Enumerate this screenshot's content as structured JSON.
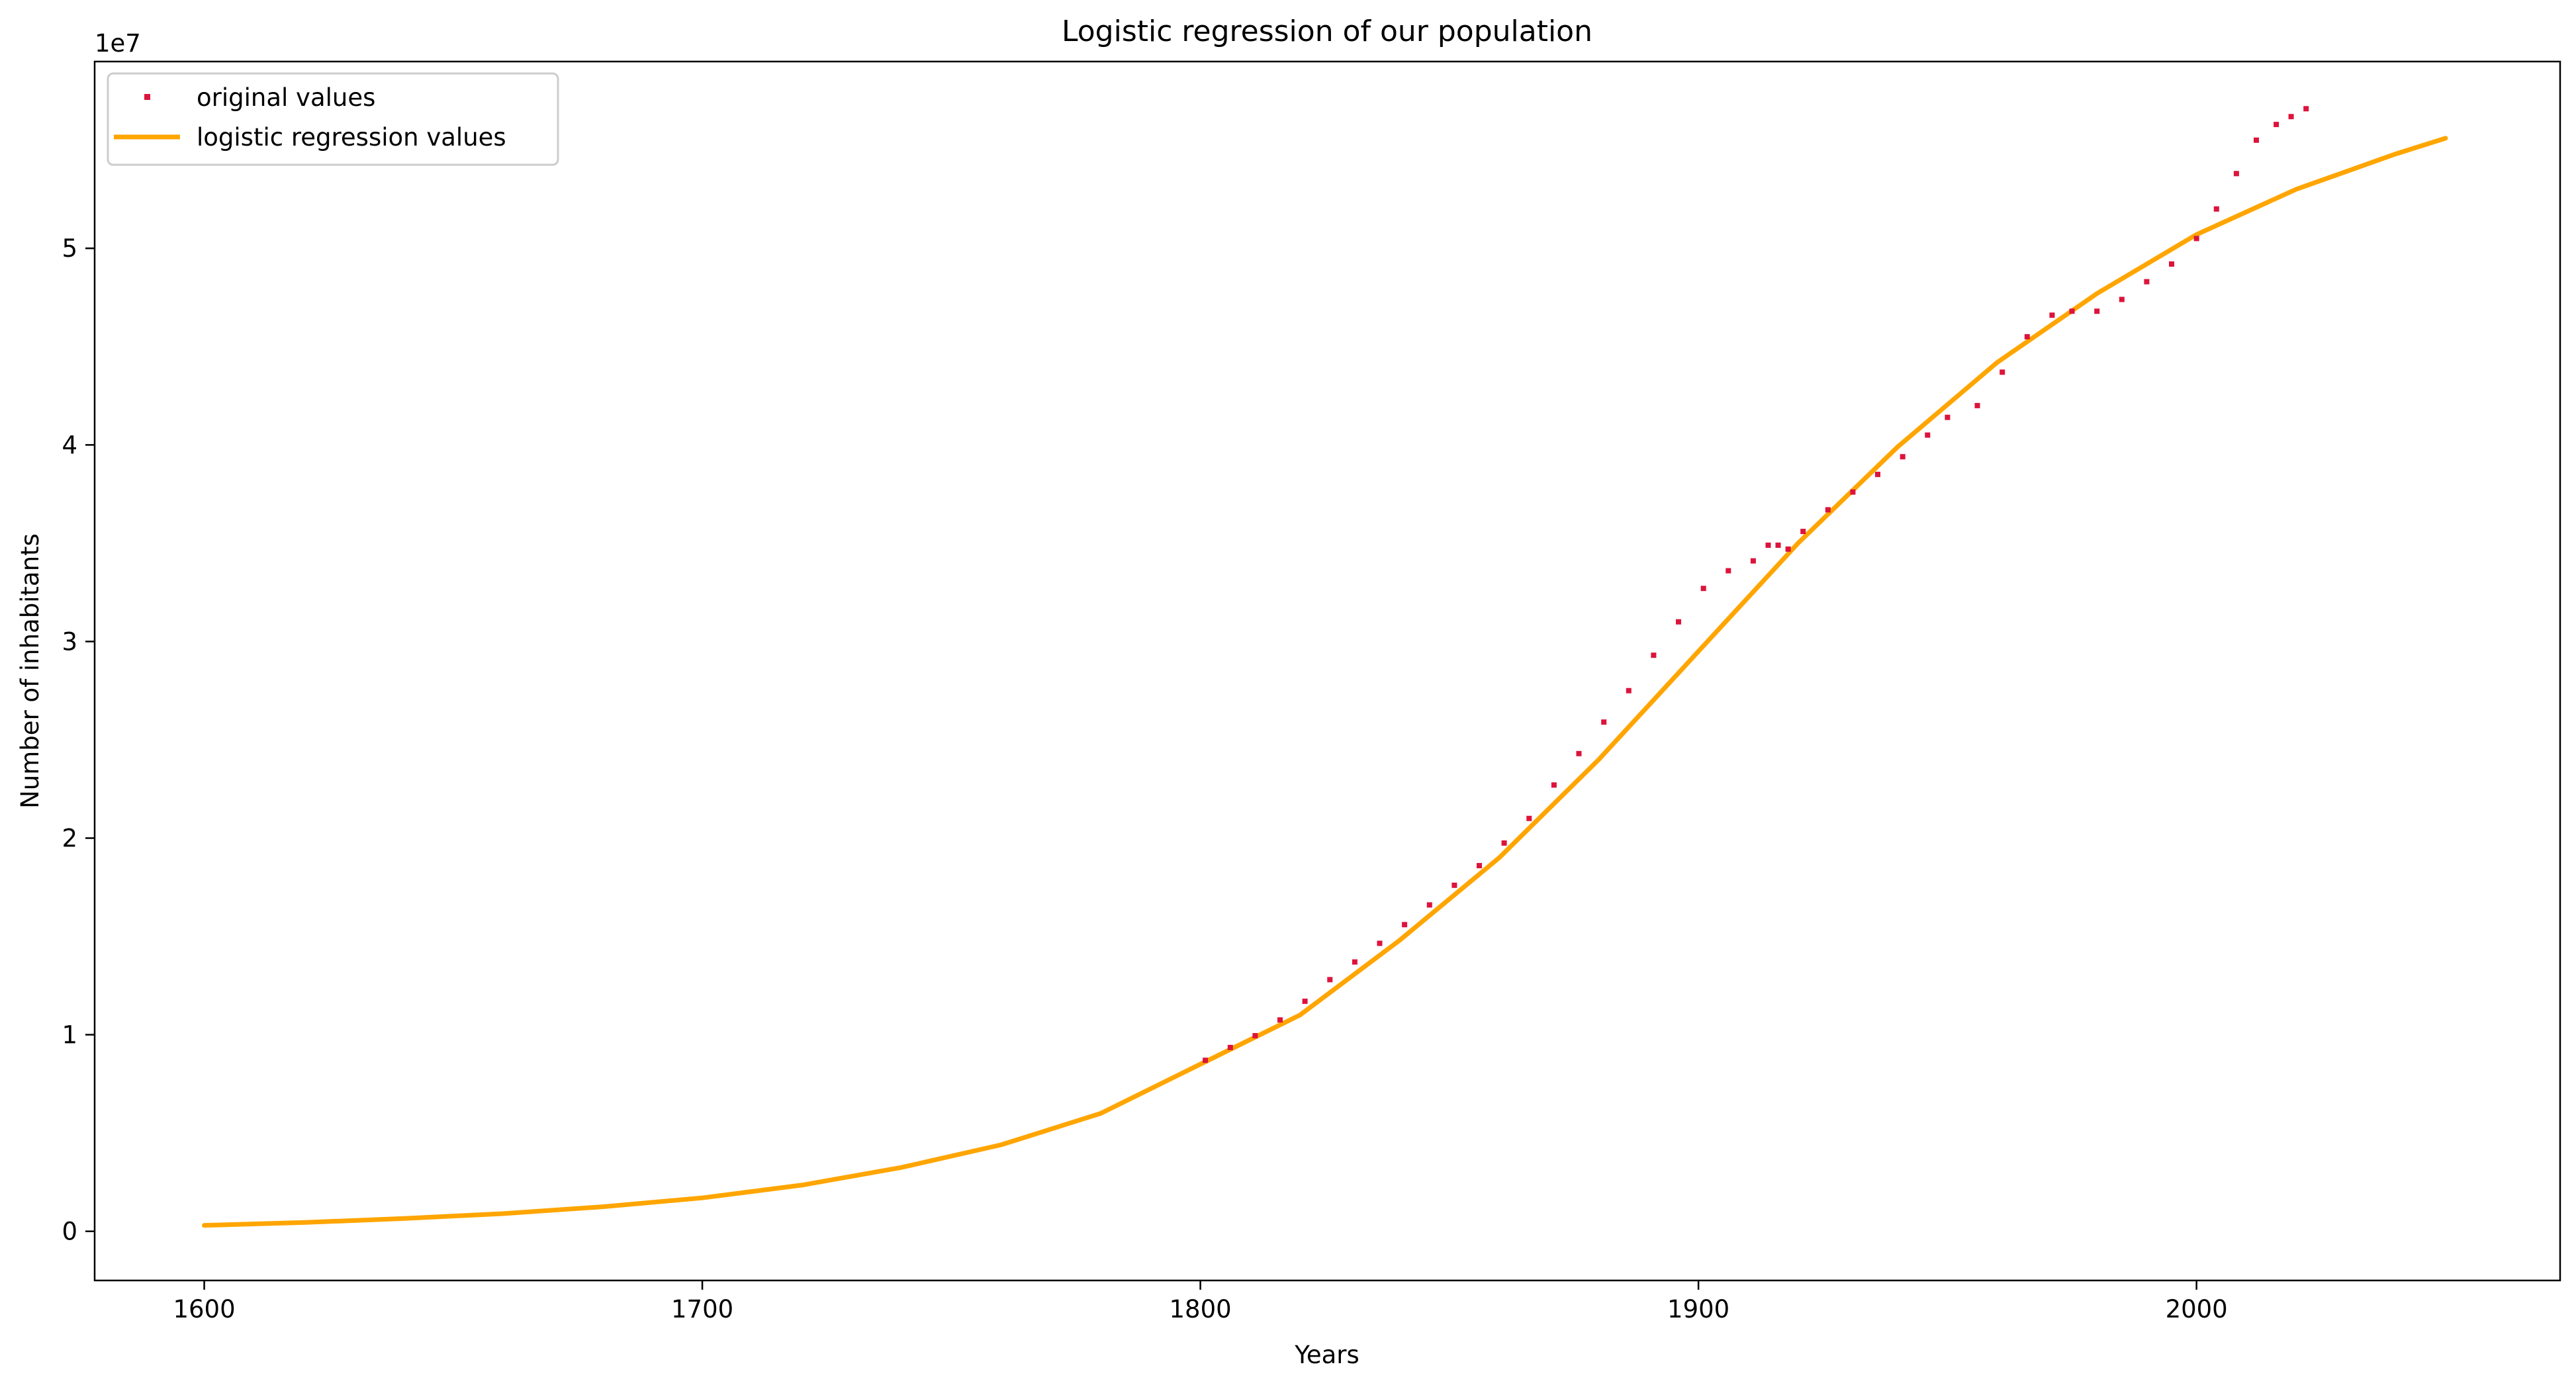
{
  "chart_data": {
    "type": "line",
    "title": "Logistic regression of our population",
    "xlabel": "Years",
    "ylabel": "Number of inhabitants",
    "y_offset_label": "1e7",
    "xlim": [
      1578,
      2073
    ],
    "ylim": [
      -2500000,
      59500000
    ],
    "xticks": [
      1600,
      1700,
      1800,
      1900,
      2000
    ],
    "xtick_labels": [
      "1600",
      "1700",
      "1800",
      "1900",
      "2000"
    ],
    "yticks": [
      0,
      10000000,
      20000000,
      30000000,
      40000000,
      50000000
    ],
    "ytick_labels": [
      "0",
      "1",
      "2",
      "3",
      "4",
      "5"
    ],
    "grid": false,
    "legend_position": "upper-left",
    "series": [
      {
        "name": "original values",
        "kind": "scatter",
        "color": "#dc143c",
        "x": [
          1801,
          1806,
          1811,
          1816,
          1821,
          1826,
          1831,
          1836,
          1841,
          1846,
          1851,
          1856,
          1861,
          1866,
          1871,
          1876,
          1881,
          1886,
          1891,
          1896,
          1901,
          1906,
          1911,
          1914,
          1916,
          1918,
          1921,
          1926,
          1931,
          1936,
          1941,
          1946,
          1950,
          1956,
          1961,
          1966,
          1971,
          1975,
          1980,
          1985,
          1990,
          1995,
          2000,
          2004,
          2008,
          2012,
          2016,
          2019,
          2022
        ],
        "y": [
          8700000,
          9350000,
          9950000,
          10750000,
          11700000,
          12800000,
          13700000,
          14650000,
          15600000,
          16600000,
          17600000,
          18600000,
          19750000,
          21000000,
          22700000,
          24300000,
          25900000,
          27500000,
          29300000,
          31000000,
          32700000,
          33600000,
          34100000,
          34900000,
          34900000,
          34700000,
          35600000,
          36700000,
          37600000,
          38500000,
          39400000,
          40500000,
          41400000,
          42000000,
          43700000,
          45500000,
          46600000,
          46800000,
          46800000,
          47400000,
          48300000,
          49200000,
          50500000,
          52000000,
          53800000,
          55500000,
          56300000,
          56700000,
          57100000
        ]
      },
      {
        "name": "logistic regression values",
        "kind": "line",
        "color": "#ffa500",
        "x": [
          1600,
          1620,
          1640,
          1660,
          1680,
          1700,
          1720,
          1740,
          1760,
          1780,
          1800,
          1820,
          1840,
          1860,
          1880,
          1900,
          1920,
          1940,
          1960,
          1980,
          2000,
          2020,
          2040,
          2050
        ],
        "y": [
          300000,
          450000,
          650000,
          900000,
          1250000,
          1700000,
          2350000,
          3250000,
          4400000,
          6000000,
          8500000,
          11000000,
          14800000,
          19000000,
          24000000,
          29500000,
          35000000,
          39900000,
          44200000,
          47700000,
          50700000,
          53000000,
          54800000,
          55600000
        ]
      }
    ]
  }
}
